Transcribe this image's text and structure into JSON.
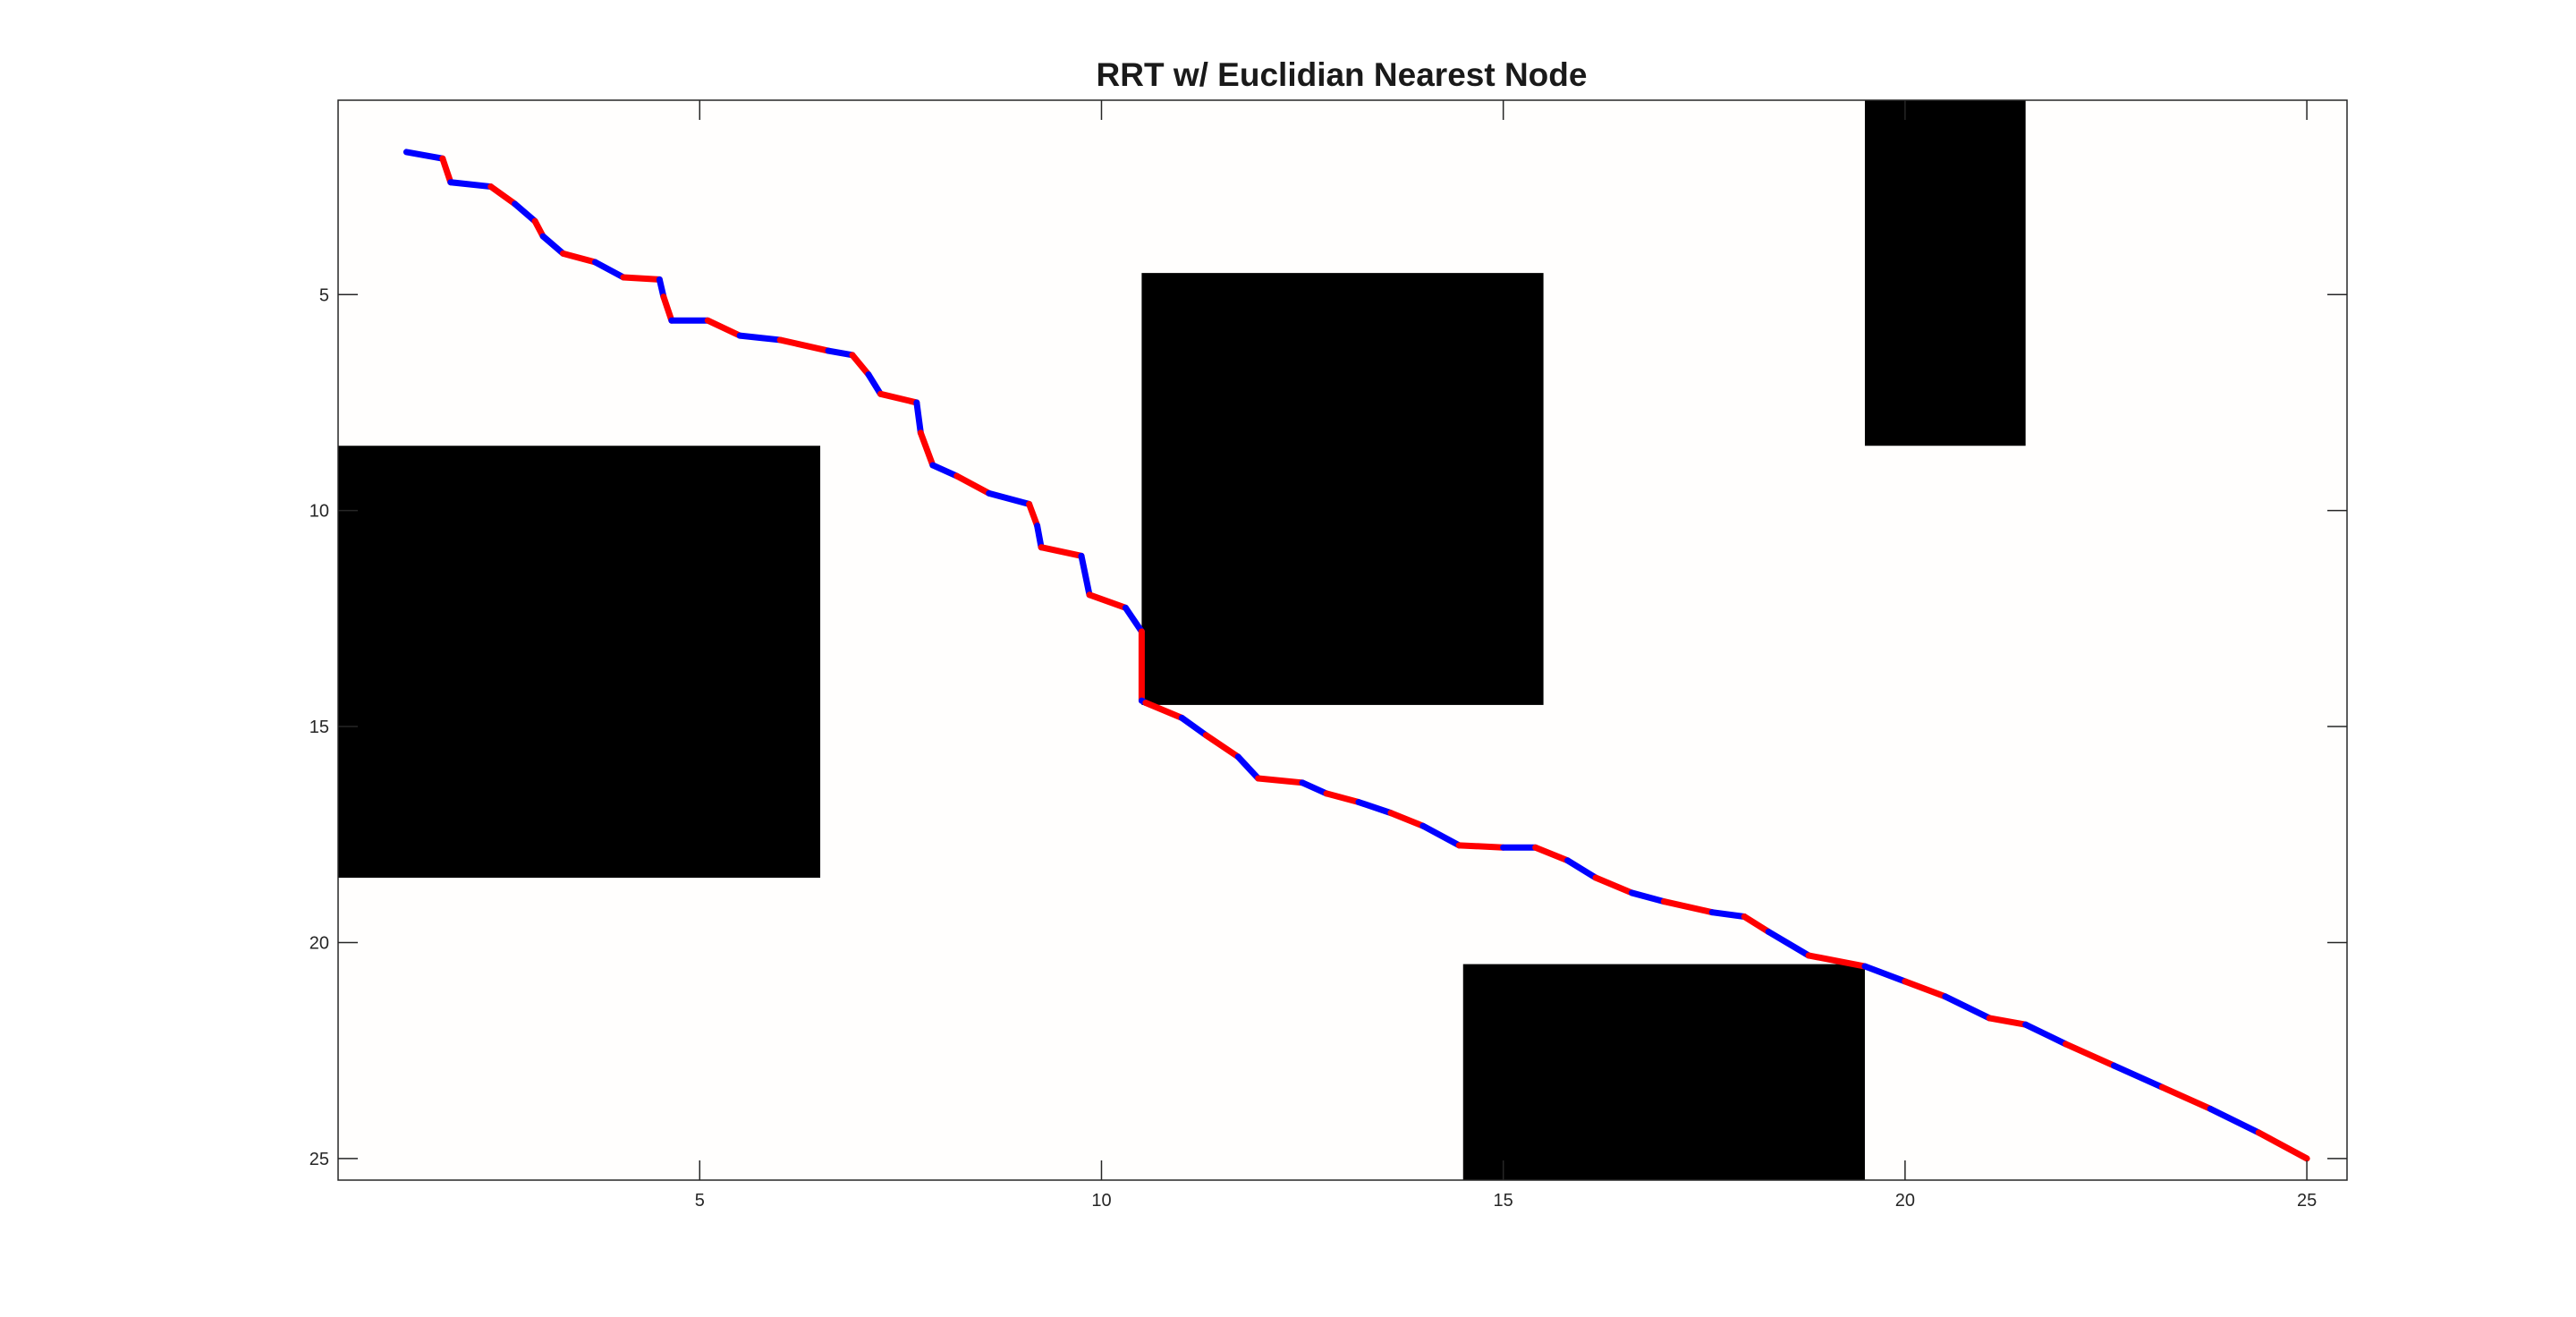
{
  "chart_data": {
    "type": "line",
    "title": "RRT w/ Euclidian Nearest Node",
    "xlabel": "",
    "ylabel": "",
    "xlim": [
      0.5,
      25.5
    ],
    "ylim": [
      0.5,
      25.5
    ],
    "y_reversed": true,
    "grid": false,
    "xticks": [
      5,
      10,
      15,
      20,
      25
    ],
    "yticks": [
      5,
      10,
      15,
      20,
      25
    ],
    "colors": {
      "background": "#fffefd",
      "obstacle": "#000000",
      "axis": "#262626",
      "path_a": "#0000ff",
      "path_b": "#ff0000"
    },
    "obstacles": [
      {
        "x0": 0.5,
        "x1": 6.5,
        "y0": 8.5,
        "y1": 18.5
      },
      {
        "x0": 10.5,
        "x1": 15.5,
        "y0": 4.5,
        "y1": 14.5
      },
      {
        "x0": 19.5,
        "x1": 21.5,
        "y0": 0.5,
        "y1": 8.5
      },
      {
        "x0": 14.5,
        "x1": 19.5,
        "y0": 20.5,
        "y1": 25.5
      }
    ],
    "series": [
      {
        "x": [
          1.35,
          1.8,
          1.9,
          2.4,
          2.7,
          2.95,
          3.05,
          3.3,
          3.7,
          4.05,
          4.5,
          4.55,
          4.65,
          5.1,
          5.5,
          6.0,
          6.6,
          6.9,
          7.1,
          7.25,
          7.7,
          7.75,
          7.9,
          8.2,
          8.6,
          9.1,
          9.2,
          9.25,
          9.75,
          9.85,
          10.3,
          10.5,
          10.5,
          10.55,
          11.0,
          11.3,
          11.7,
          11.95,
          12.5,
          12.8,
          13.2,
          13.6,
          14.0,
          14.45,
          15.0,
          15.4,
          15.8,
          16.15,
          16.6,
          17.0,
          17.6,
          18.0,
          18.3,
          18.8,
          19.5,
          20.0,
          20.5,
          21.05,
          21.5,
          22.0,
          22.6,
          23.2,
          23.8,
          24.4,
          25.0
        ],
        "y": [
          1.7,
          1.85,
          2.4,
          2.5,
          2.9,
          3.3,
          3.65,
          4.05,
          4.25,
          4.6,
          4.65,
          5.05,
          5.6,
          5.6,
          5.95,
          6.05,
          6.3,
          6.4,
          6.85,
          7.3,
          7.5,
          8.2,
          8.95,
          9.2,
          9.6,
          9.85,
          10.35,
          10.85,
          11.05,
          11.95,
          12.25,
          12.8,
          14.4,
          14.45,
          14.8,
          15.2,
          15.7,
          16.2,
          16.3,
          16.55,
          16.75,
          17.0,
          17.3,
          17.75,
          17.8,
          17.8,
          18.1,
          18.5,
          18.85,
          19.05,
          19.3,
          19.4,
          19.75,
          20.3,
          20.55,
          20.9,
          21.25,
          21.75,
          21.9,
          22.35,
          22.85,
          23.35,
          23.85,
          24.4,
          25.0
        ]
      }
    ]
  }
}
